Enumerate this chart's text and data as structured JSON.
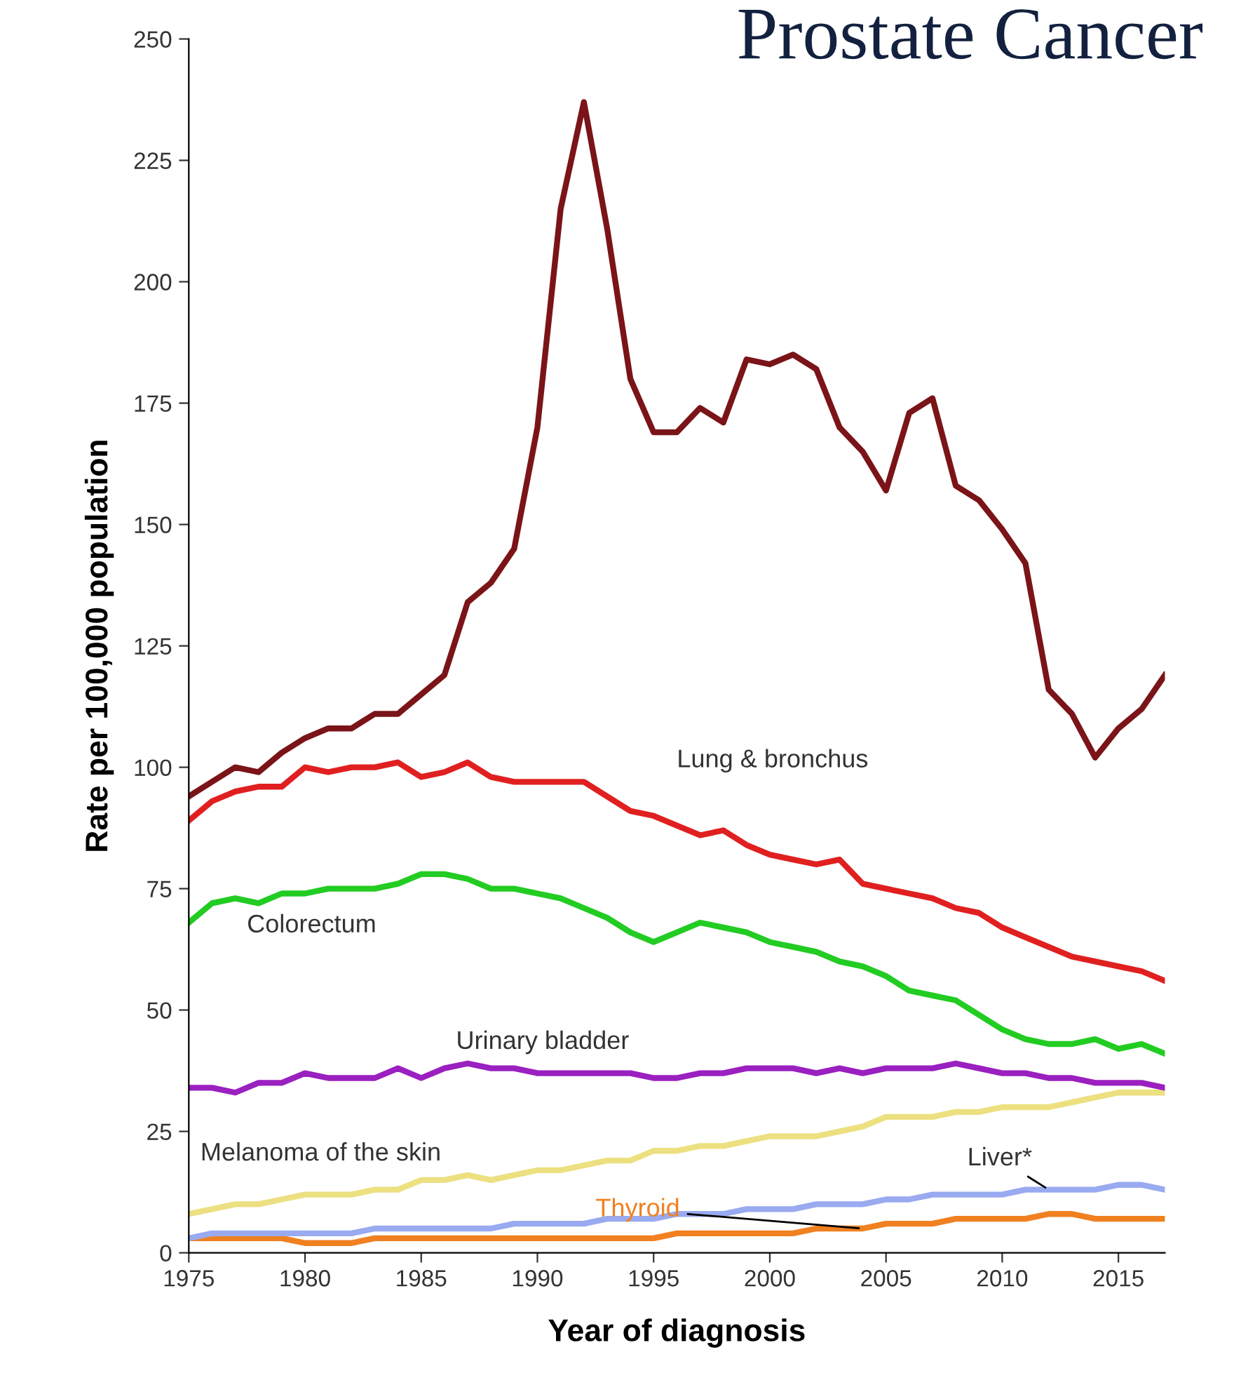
{
  "chart_data": {
    "type": "line",
    "title": "Prostate Cancer",
    "xlabel": "Year of diagnosis",
    "ylabel": "Rate per 100,000 population",
    "x": [
      1975,
      1976,
      1977,
      1978,
      1979,
      1980,
      1981,
      1982,
      1983,
      1984,
      1985,
      1986,
      1987,
      1988,
      1989,
      1990,
      1991,
      1992,
      1993,
      1994,
      1995,
      1996,
      1997,
      1998,
      1999,
      2000,
      2001,
      2002,
      2003,
      2004,
      2005,
      2006,
      2007,
      2008,
      2009,
      2010,
      2011,
      2012,
      2013,
      2014,
      2015,
      2016,
      2017
    ],
    "xlim": [
      1975,
      2017
    ],
    "xticks": [
      1975,
      1980,
      1985,
      1990,
      1995,
      2000,
      2005,
      2010,
      2015
    ],
    "ylim": [
      0,
      250
    ],
    "yticks": [
      0,
      25,
      50,
      75,
      100,
      125,
      150,
      175,
      200,
      225,
      250
    ],
    "grid": false,
    "legend": false,
    "marker": "none",
    "line_style": "solid",
    "series": [
      {
        "color": "#7a1418",
        "values": [
          94,
          97,
          100,
          99,
          103,
          106,
          108,
          108,
          111,
          111,
          115,
          119,
          134,
          138,
          145,
          170,
          215,
          237,
          211,
          180,
          169,
          169,
          174,
          171,
          184,
          183,
          185,
          182,
          170,
          165,
          157,
          173,
          176,
          158,
          155,
          149,
          142,
          116,
          111,
          102,
          108,
          112,
          119
        ]
      },
      {
        "name": "Lung & bronchus",
        "color": "#e02020",
        "values": [
          89,
          93,
          95,
          96,
          96,
          100,
          99,
          100,
          100,
          101,
          98,
          99,
          101,
          98,
          97,
          97,
          97,
          97,
          94,
          91,
          90,
          88,
          86,
          87,
          84,
          82,
          81,
          80,
          81,
          76,
          75,
          74,
          73,
          71,
          70,
          67,
          65,
          63,
          61,
          60,
          59,
          58,
          56
        ]
      },
      {
        "name": "Colorectum",
        "color": "#22cc22",
        "values": [
          68,
          72,
          73,
          72,
          74,
          74,
          75,
          75,
          75,
          76,
          78,
          78,
          77,
          75,
          75,
          74,
          73,
          71,
          69,
          66,
          64,
          66,
          68,
          67,
          66,
          64,
          63,
          62,
          60,
          59,
          57,
          54,
          53,
          52,
          49,
          46,
          44,
          43,
          43,
          44,
          42,
          43,
          41
        ]
      },
      {
        "name": "Urinary bladder",
        "color": "#9a20c0",
        "values": [
          34,
          34,
          33,
          35,
          35,
          37,
          36,
          36,
          36,
          38,
          36,
          38,
          39,
          38,
          38,
          37,
          37,
          37,
          37,
          37,
          36,
          36,
          37,
          37,
          38,
          38,
          38,
          37,
          38,
          37,
          38,
          38,
          38,
          39,
          38,
          37,
          37,
          36,
          36,
          35,
          35,
          35,
          34
        ]
      },
      {
        "name": "Melanoma of the skin",
        "color": "#ece080",
        "values": [
          8,
          9,
          10,
          10,
          11,
          12,
          12,
          12,
          13,
          13,
          15,
          15,
          16,
          15,
          16,
          17,
          17,
          18,
          19,
          19,
          21,
          21,
          22,
          22,
          23,
          24,
          24,
          24,
          25,
          26,
          28,
          28,
          28,
          29,
          29,
          30,
          30,
          30,
          31,
          32,
          33,
          33,
          33
        ]
      },
      {
        "name": "Liver*",
        "color": "#99aaf0",
        "values": [
          3,
          4,
          4,
          4,
          4,
          4,
          4,
          4,
          5,
          5,
          5,
          5,
          5,
          5,
          6,
          6,
          6,
          6,
          7,
          7,
          7,
          8,
          8,
          8,
          9,
          9,
          9,
          10,
          10,
          10,
          11,
          11,
          12,
          12,
          12,
          12,
          13,
          13,
          13,
          13,
          14,
          14,
          13
        ]
      },
      {
        "name": "Thyroid",
        "color": "#f08020",
        "values": [
          3,
          3,
          3,
          3,
          3,
          2,
          2,
          2,
          3,
          3,
          3,
          3,
          3,
          3,
          3,
          3,
          3,
          3,
          3,
          3,
          3,
          4,
          4,
          4,
          4,
          4,
          4,
          5,
          5,
          5,
          6,
          6,
          6,
          7,
          7,
          7,
          7,
          8,
          8,
          7,
          7,
          7,
          7
        ]
      }
    ]
  }
}
